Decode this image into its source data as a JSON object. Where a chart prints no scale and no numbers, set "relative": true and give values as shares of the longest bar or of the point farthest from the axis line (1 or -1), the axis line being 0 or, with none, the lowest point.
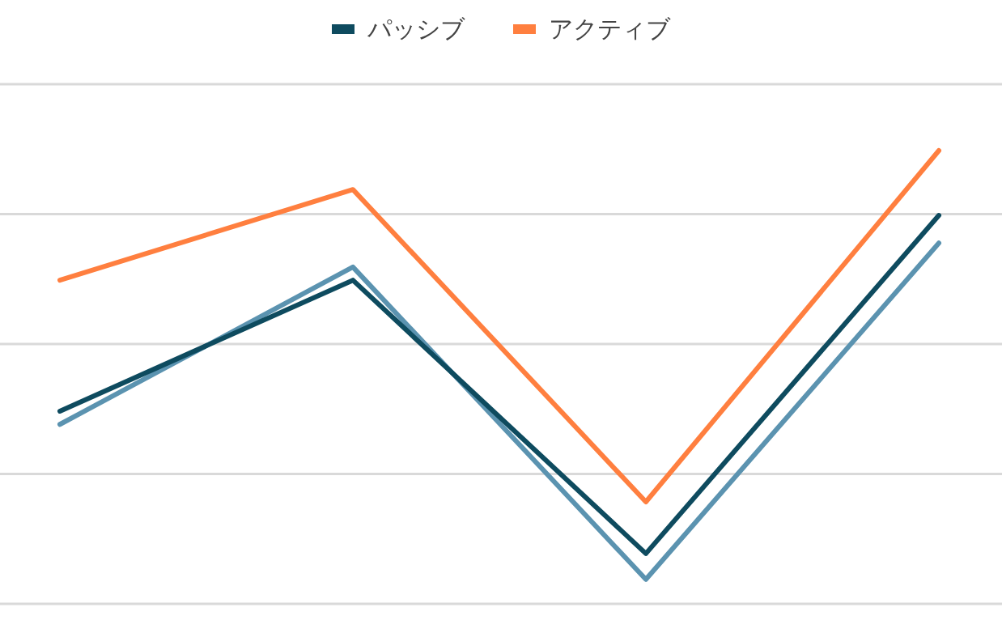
{
  "chart_data": {
    "type": "line",
    "relative": true,
    "categories": [
      null,
      null,
      null,
      null
    ],
    "grid": "y",
    "legend": "top",
    "marker": "none",
    "line_style": "solid",
    "series": [
      {
        "color": "#5b93b0",
        "values": [
          0.396,
          0.743,
          0.054,
          0.796
        ]
      },
      {
        "name": "パッシブ",
        "color": "#0e4b5f",
        "values": [
          0.425,
          0.714,
          0.111,
          0.857
        ]
      },
      {
        "name": "アクティブ",
        "color": "#ff7f3f",
        "values": [
          0.714,
          0.914,
          0.225,
          1
        ]
      }
    ]
  }
}
